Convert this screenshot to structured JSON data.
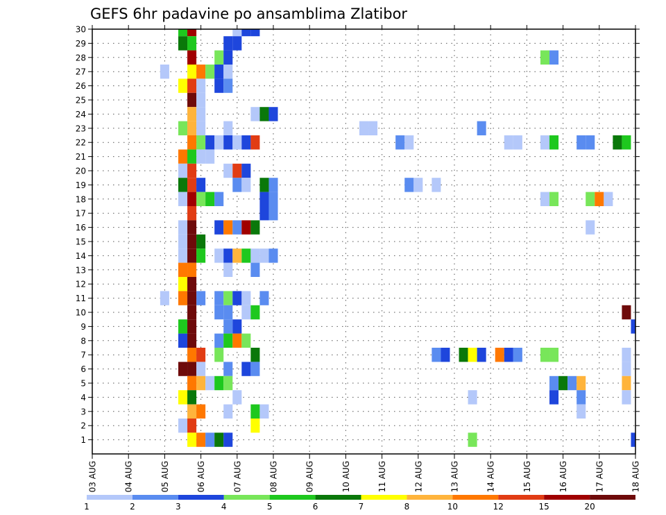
{
  "chart_data": {
    "type": "heatmap",
    "title": "GEFS 6hr padavine po ansamblima Zlatibor",
    "xlabel": "",
    "ylabel": "",
    "x_tick_labels": [
      "03 AUG",
      "04 AUG",
      "05 AUG",
      "06 AUG",
      "07 AUG",
      "08 AUG",
      "09 AUG",
      "10 AUG",
      "11 AUG",
      "12 AUG",
      "13 AUG",
      "14 AUG",
      "15 AUG",
      "16 AUG",
      "17 AUG",
      "18 AUG"
    ],
    "y_tick_labels": [
      "1",
      "2",
      "3",
      "4",
      "5",
      "6",
      "7",
      "8",
      "9",
      "10",
      "11",
      "12",
      "13",
      "14",
      "15",
      "16",
      "17",
      "18",
      "19",
      "20",
      "21",
      "22",
      "23",
      "24",
      "25",
      "26",
      "27",
      "28",
      "29",
      "30"
    ],
    "x_range": [
      "03 AUG 00z",
      "18 AUG 00z"
    ],
    "x_step": "6hr",
    "y_range": [
      0,
      30
    ],
    "grid": true,
    "colorbar": {
      "placement": "bottom",
      "labels": [
        "1",
        "2",
        "3",
        "4",
        "5",
        "6",
        "7",
        "8",
        "10",
        "12",
        "15",
        "20"
      ],
      "colors": [
        "#b4c8fa",
        "#5a8cf0",
        "#1e46dc",
        "#78e65a",
        "#1ec81e",
        "#0a780a",
        "#ffff00",
        "#ffb43c",
        "#ff7800",
        "#e13c14",
        "#a00000",
        "#6e0a0a"
      ]
    },
    "cells": [
      {
        "member": 30,
        "time": "05 AUG 12z",
        "color": 5
      },
      {
        "member": 30,
        "time": "05 AUG 18z",
        "color": 11
      },
      {
        "member": 30,
        "time": "07 AUG 00z",
        "color": 1
      },
      {
        "member": 30,
        "time": "07 AUG 06z",
        "color": 3
      },
      {
        "member": 30,
        "time": "07 AUG 12z",
        "color": 3
      },
      {
        "member": 29,
        "time": "05 AUG 12z",
        "color": 6
      },
      {
        "member": 29,
        "time": "05 AUG 18z",
        "color": 5
      },
      {
        "member": 29,
        "time": "06 AUG 18z",
        "color": 3
      },
      {
        "member": 29,
        "time": "07 AUG 00z",
        "color": 3
      },
      {
        "member": 28,
        "time": "05 AUG 18z",
        "color": 11
      },
      {
        "member": 28,
        "time": "06 AUG 12z",
        "color": 4
      },
      {
        "member": 28,
        "time": "06 AUG 18z",
        "color": 3
      },
      {
        "member": 28,
        "time": "15 AUG 12z",
        "color": 4
      },
      {
        "member": 28,
        "time": "15 AUG 18z",
        "color": 2
      },
      {
        "member": 27,
        "time": "05 AUG 00z",
        "color": 1
      },
      {
        "member": 27,
        "time": "05 AUG 18z",
        "color": 7
      },
      {
        "member": 27,
        "time": "06 AUG 00z",
        "color": 9
      },
      {
        "member": 27,
        "time": "06 AUG 06z",
        "color": 4
      },
      {
        "member": 27,
        "time": "06 AUG 12z",
        "color": 3
      },
      {
        "member": 27,
        "time": "06 AUG 18z",
        "color": 1
      },
      {
        "member": 26,
        "time": "05 AUG 12z",
        "color": 7
      },
      {
        "member": 26,
        "time": "05 AUG 18z",
        "color": 10
      },
      {
        "member": 26,
        "time": "06 AUG 00z",
        "color": 1
      },
      {
        "member": 26,
        "time": "06 AUG 12z",
        "color": 3
      },
      {
        "member": 26,
        "time": "06 AUG 18z",
        "color": 2
      },
      {
        "member": 25,
        "time": "05 AUG 18z",
        "color": 12
      },
      {
        "member": 25,
        "time": "06 AUG 00z",
        "color": 1
      },
      {
        "member": 24,
        "time": "05 AUG 18z",
        "color": 8
      },
      {
        "member": 24,
        "time": "06 AUG 00z",
        "color": 1
      },
      {
        "member": 24,
        "time": "07 AUG 12z",
        "color": 1
      },
      {
        "member": 24,
        "time": "07 AUG 18z",
        "color": 6
      },
      {
        "member": 24,
        "time": "08 AUG 00z",
        "color": 3
      },
      {
        "member": 23,
        "time": "05 AUG 12z",
        "color": 4
      },
      {
        "member": 23,
        "time": "05 AUG 18z",
        "color": 8
      },
      {
        "member": 23,
        "time": "06 AUG 00z",
        "color": 1
      },
      {
        "member": 23,
        "time": "06 AUG 18z",
        "color": 1
      },
      {
        "member": 23,
        "time": "10 AUG 12z",
        "color": 1
      },
      {
        "member": 23,
        "time": "10 AUG 18z",
        "color": 1
      },
      {
        "member": 23,
        "time": "13 AUG 18z",
        "color": 2
      },
      {
        "member": 22,
        "time": "05 AUG 18z",
        "color": 9
      },
      {
        "member": 22,
        "time": "06 AUG 00z",
        "color": 4
      },
      {
        "member": 22,
        "time": "06 AUG 06z",
        "color": 3
      },
      {
        "member": 22,
        "time": "06 AUG 12z",
        "color": 1
      },
      {
        "member": 22,
        "time": "06 AUG 18z",
        "color": 3
      },
      {
        "member": 22,
        "time": "07 AUG 00z",
        "color": 1
      },
      {
        "member": 22,
        "time": "07 AUG 06z",
        "color": 3
      },
      {
        "member": 22,
        "time": "07 AUG 12z",
        "color": 10
      },
      {
        "member": 22,
        "time": "11 AUG 12z",
        "color": 2
      },
      {
        "member": 22,
        "time": "11 AUG 18z",
        "color": 1
      },
      {
        "member": 22,
        "time": "14 AUG 12z",
        "color": 1
      },
      {
        "member": 22,
        "time": "14 AUG 18z",
        "color": 1
      },
      {
        "member": 22,
        "time": "15 AUG 12z",
        "color": 1
      },
      {
        "member": 22,
        "time": "15 AUG 18z",
        "color": 5
      },
      {
        "member": 22,
        "time": "16 AUG 12z",
        "color": 2
      },
      {
        "member": 22,
        "time": "16 AUG 18z",
        "color": 2
      },
      {
        "member": 22,
        "time": "17 AUG 12z",
        "color": 6
      },
      {
        "member": 22,
        "time": "17 AUG 18z",
        "color": 5
      },
      {
        "member": 21,
        "time": "05 AUG 12z",
        "color": 9
      },
      {
        "member": 21,
        "time": "05 AUG 18z",
        "color": 5
      },
      {
        "member": 21,
        "time": "06 AUG 00z",
        "color": 1
      },
      {
        "member": 21,
        "time": "06 AUG 06z",
        "color": 1
      },
      {
        "member": 20,
        "time": "05 AUG 12z",
        "color": 1
      },
      {
        "member": 20,
        "time": "05 AUG 18z",
        "color": 10
      },
      {
        "member": 20,
        "time": "06 AUG 18z",
        "color": 1
      },
      {
        "member": 20,
        "time": "07 AUG 00z",
        "color": 10
      },
      {
        "member": 20,
        "time": "07 AUG 06z",
        "color": 3
      },
      {
        "member": 19,
        "time": "05 AUG 12z",
        "color": 6
      },
      {
        "member": 19,
        "time": "05 AUG 18z",
        "color": 10
      },
      {
        "member": 19,
        "time": "06 AUG 00z",
        "color": 3
      },
      {
        "member": 19,
        "time": "07 AUG 00z",
        "color": 2
      },
      {
        "member": 19,
        "time": "07 AUG 06z",
        "color": 1
      },
      {
        "member": 19,
        "time": "07 AUG 18z",
        "color": 6
      },
      {
        "member": 19,
        "time": "08 AUG 00z",
        "color": 2
      },
      {
        "member": 19,
        "time": "11 AUG 18z",
        "color": 2
      },
      {
        "member": 19,
        "time": "12 AUG 00z",
        "color": 1
      },
      {
        "member": 19,
        "time": "12 AUG 12z",
        "color": 1
      },
      {
        "member": 18,
        "time": "05 AUG 12z",
        "color": 1
      },
      {
        "member": 18,
        "time": "05 AUG 18z",
        "color": 11
      },
      {
        "member": 18,
        "time": "06 AUG 00z",
        "color": 4
      },
      {
        "member": 18,
        "time": "06 AUG 06z",
        "color": 5
      },
      {
        "member": 18,
        "time": "06 AUG 12z",
        "color": 2
      },
      {
        "member": 18,
        "time": "07 AUG 18z",
        "color": 3
      },
      {
        "member": 18,
        "time": "08 AUG 00z",
        "color": 2
      },
      {
        "member": 18,
        "time": "15 AUG 12z",
        "color": 1
      },
      {
        "member": 18,
        "time": "15 AUG 18z",
        "color": 4
      },
      {
        "member": 18,
        "time": "16 AUG 18z",
        "color": 4
      },
      {
        "member": 18,
        "time": "17 AUG 00z",
        "color": 9
      },
      {
        "member": 18,
        "time": "17 AUG 06z",
        "color": 1
      },
      {
        "member": 17,
        "time": "05 AUG 18z",
        "color": 10
      },
      {
        "member": 17,
        "time": "07 AUG 18z",
        "color": 3
      },
      {
        "member": 17,
        "time": "08 AUG 00z",
        "color": 2
      },
      {
        "member": 16,
        "time": "05 AUG 12z",
        "color": 1
      },
      {
        "member": 16,
        "time": "05 AUG 18z",
        "color": 12
      },
      {
        "member": 16,
        "time": "06 AUG 12z",
        "color": 3
      },
      {
        "member": 16,
        "time": "06 AUG 18z",
        "color": 9
      },
      {
        "member": 16,
        "time": "07 AUG 00z",
        "color": 2
      },
      {
        "member": 16,
        "time": "07 AUG 06z",
        "color": 11
      },
      {
        "member": 16,
        "time": "07 AUG 12z",
        "color": 6
      },
      {
        "member": 16,
        "time": "16 AUG 18z",
        "color": 1
      },
      {
        "member": 15,
        "time": "05 AUG 12z",
        "color": 1
      },
      {
        "member": 15,
        "time": "05 AUG 18z",
        "color": 12
      },
      {
        "member": 15,
        "time": "06 AUG 00z",
        "color": 6
      },
      {
        "member": 14,
        "time": "05 AUG 12z",
        "color": 1
      },
      {
        "member": 14,
        "time": "05 AUG 18z",
        "color": 12
      },
      {
        "member": 14,
        "time": "06 AUG 00z",
        "color": 5
      },
      {
        "member": 14,
        "time": "06 AUG 12z",
        "color": 1
      },
      {
        "member": 14,
        "time": "06 AUG 18z",
        "color": 3
      },
      {
        "member": 14,
        "time": "07 AUG 00z",
        "color": 8
      },
      {
        "member": 14,
        "time": "07 AUG 06z",
        "color": 5
      },
      {
        "member": 14,
        "time": "07 AUG 12z",
        "color": 1
      },
      {
        "member": 14,
        "time": "07 AUG 18z",
        "color": 1
      },
      {
        "member": 14,
        "time": "08 AUG 00z",
        "color": 2
      },
      {
        "member": 13,
        "time": "05 AUG 12z",
        "color": 9
      },
      {
        "member": 13,
        "time": "05 AUG 18z",
        "color": 9
      },
      {
        "member": 13,
        "time": "06 AUG 18z",
        "color": 1
      },
      {
        "member": 13,
        "time": "07 AUG 12z",
        "color": 2
      },
      {
        "member": 12,
        "time": "05 AUG 12z",
        "color": 7
      },
      {
        "member": 12,
        "time": "05 AUG 18z",
        "color": 12
      },
      {
        "member": 11,
        "time": "05 AUG 00z",
        "color": 1
      },
      {
        "member": 11,
        "time": "05 AUG 12z",
        "color": 9
      },
      {
        "member": 11,
        "time": "05 AUG 18z",
        "color": 12
      },
      {
        "member": 11,
        "time": "06 AUG 00z",
        "color": 2
      },
      {
        "member": 11,
        "time": "06 AUG 12z",
        "color": 2
      },
      {
        "member": 11,
        "time": "06 AUG 18z",
        "color": 4
      },
      {
        "member": 11,
        "time": "07 AUG 00z",
        "color": 3
      },
      {
        "member": 11,
        "time": "07 AUG 06z",
        "color": 1
      },
      {
        "member": 11,
        "time": "07 AUG 18z",
        "color": 2
      },
      {
        "member": 10,
        "time": "05 AUG 18z",
        "color": 12
      },
      {
        "member": 10,
        "time": "06 AUG 12z",
        "color": 2
      },
      {
        "member": 10,
        "time": "06 AUG 18z",
        "color": 2
      },
      {
        "member": 10,
        "time": "07 AUG 06z",
        "color": 1
      },
      {
        "member": 10,
        "time": "07 AUG 12z",
        "color": 5
      },
      {
        "member": 10,
        "time": "17 AUG 18z",
        "color": 12
      },
      {
        "member": 9,
        "time": "05 AUG 12z",
        "color": 5
      },
      {
        "member": 9,
        "time": "05 AUG 18z",
        "color": 12
      },
      {
        "member": 9,
        "time": "06 AUG 18z",
        "color": 2
      },
      {
        "member": 9,
        "time": "07 AUG 00z",
        "color": 3
      },
      {
        "member": 9,
        "time": "18 AUG 00z",
        "color": 3
      },
      {
        "member": 8,
        "time": "05 AUG 12z",
        "color": 3
      },
      {
        "member": 8,
        "time": "05 AUG 18z",
        "color": 12
      },
      {
        "member": 8,
        "time": "06 AUG 12z",
        "color": 2
      },
      {
        "member": 8,
        "time": "06 AUG 18z",
        "color": 5
      },
      {
        "member": 8,
        "time": "07 AUG 00z",
        "color": 9
      },
      {
        "member": 8,
        "time": "07 AUG 06z",
        "color": 4
      },
      {
        "member": 7,
        "time": "05 AUG 18z",
        "color": 9
      },
      {
        "member": 7,
        "time": "06 AUG 00z",
        "color": 10
      },
      {
        "member": 7,
        "time": "06 AUG 12z",
        "color": 4
      },
      {
        "member": 7,
        "time": "07 AUG 12z",
        "color": 6
      },
      {
        "member": 7,
        "time": "12 AUG 12z",
        "color": 2
      },
      {
        "member": 7,
        "time": "12 AUG 18z",
        "color": 3
      },
      {
        "member": 7,
        "time": "13 AUG 06z",
        "color": 6
      },
      {
        "member": 7,
        "time": "13 AUG 12z",
        "color": 7
      },
      {
        "member": 7,
        "time": "13 AUG 18z",
        "color": 3
      },
      {
        "member": 7,
        "time": "14 AUG 06z",
        "color": 9
      },
      {
        "member": 7,
        "time": "14 AUG 12z",
        "color": 3
      },
      {
        "member": 7,
        "time": "14 AUG 18z",
        "color": 2
      },
      {
        "member": 7,
        "time": "15 AUG 12z",
        "color": 4
      },
      {
        "member": 7,
        "time": "15 AUG 18z",
        "color": 4
      },
      {
        "member": 7,
        "time": "17 AUG 18z",
        "color": 1
      },
      {
        "member": 6,
        "time": "05 AUG 12z",
        "color": 12
      },
      {
        "member": 6,
        "time": "05 AUG 18z",
        "color": 12
      },
      {
        "member": 6,
        "time": "06 AUG 00z",
        "color": 1
      },
      {
        "member": 6,
        "time": "06 AUG 18z",
        "color": 2
      },
      {
        "member": 6,
        "time": "07 AUG 06z",
        "color": 3
      },
      {
        "member": 6,
        "time": "07 AUG 12z",
        "color": 2
      },
      {
        "member": 6,
        "time": "17 AUG 18z",
        "color": 1
      },
      {
        "member": 5,
        "time": "05 AUG 18z",
        "color": 9
      },
      {
        "member": 5,
        "time": "06 AUG 00z",
        "color": 8
      },
      {
        "member": 5,
        "time": "06 AUG 06z",
        "color": 1
      },
      {
        "member": 5,
        "time": "06 AUG 12z",
        "color": 5
      },
      {
        "member": 5,
        "time": "06 AUG 18z",
        "color": 4
      },
      {
        "member": 5,
        "time": "15 AUG 18z",
        "color": 2
      },
      {
        "member": 5,
        "time": "16 AUG 00z",
        "color": 6
      },
      {
        "member": 5,
        "time": "16 AUG 06z",
        "color": 2
      },
      {
        "member": 5,
        "time": "16 AUG 12z",
        "color": 8
      },
      {
        "member": 5,
        "time": "17 AUG 18z",
        "color": 8
      },
      {
        "member": 4,
        "time": "05 AUG 12z",
        "color": 7
      },
      {
        "member": 4,
        "time": "05 AUG 18z",
        "color": 6
      },
      {
        "member": 4,
        "time": "07 AUG 00z",
        "color": 1
      },
      {
        "member": 4,
        "time": "13 AUG 12z",
        "color": 1
      },
      {
        "member": 4,
        "time": "15 AUG 18z",
        "color": 3
      },
      {
        "member": 4,
        "time": "16 AUG 12z",
        "color": 2
      },
      {
        "member": 4,
        "time": "17 AUG 18z",
        "color": 1
      },
      {
        "member": 3,
        "time": "05 AUG 18z",
        "color": 8
      },
      {
        "member": 3,
        "time": "06 AUG 00z",
        "color": 9
      },
      {
        "member": 3,
        "time": "06 AUG 18z",
        "color": 1
      },
      {
        "member": 3,
        "time": "07 AUG 12z",
        "color": 5
      },
      {
        "member": 3,
        "time": "07 AUG 18z",
        "color": 1
      },
      {
        "member": 3,
        "time": "16 AUG 12z",
        "color": 1
      },
      {
        "member": 2,
        "time": "05 AUG 12z",
        "color": 1
      },
      {
        "member": 2,
        "time": "05 AUG 18z",
        "color": 10
      },
      {
        "member": 2,
        "time": "07 AUG 12z",
        "color": 7
      },
      {
        "member": 1,
        "time": "05 AUG 18z",
        "color": 7
      },
      {
        "member": 1,
        "time": "06 AUG 00z",
        "color": 9
      },
      {
        "member": 1,
        "time": "06 AUG 06z",
        "color": 2
      },
      {
        "member": 1,
        "time": "06 AUG 12z",
        "color": 6
      },
      {
        "member": 1,
        "time": "06 AUG 18z",
        "color": 3
      },
      {
        "member": 1,
        "time": "13 AUG 12z",
        "color": 4
      },
      {
        "member": 1,
        "time": "18 AUG 00z",
        "color": 3
      }
    ]
  }
}
